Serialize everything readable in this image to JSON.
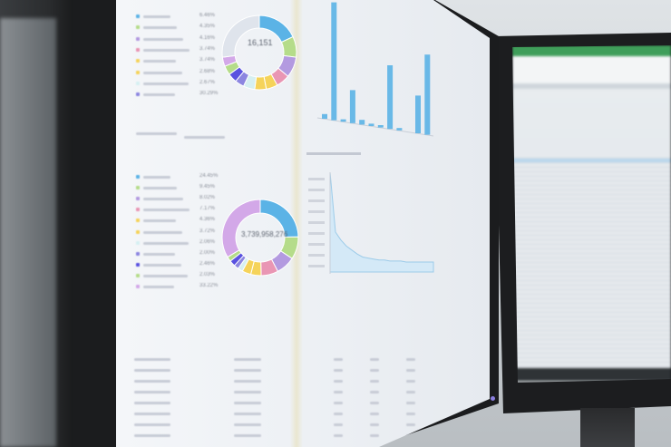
{
  "scene": "dashboard monitors",
  "colors": {
    "accent_blue": "#5bb3e6",
    "green": "#b5dc8a",
    "purple": "#b39ae0",
    "pink": "#e996b4",
    "yellow": "#f5d35a",
    "cyan": "#d6f0f2",
    "indigo": "#5a52e0",
    "violet": "#8c86e0",
    "lavender": "#d3a8e8",
    "grey": "#dfe4ec",
    "sheet_header": "#3f9e5a"
  },
  "top_donut": {
    "center_value": "16,151",
    "percentages": [
      "6.46%",
      "4.35%",
      "4.16%",
      "3.74%",
      "3.74%",
      "2.68%",
      "2.67%",
      "30.29%"
    ],
    "segments": [
      18,
      9,
      9,
      6,
      5,
      5,
      5,
      4,
      4,
      4,
      4,
      27
    ]
  },
  "bottom_donut": {
    "center_value": "3,739,958,276",
    "percentages": [
      "24.45%",
      "9.45%",
      "8.02%",
      "7.17%",
      "4.36%",
      "3.72%",
      "2.06%",
      "2.00%",
      "2.46%",
      "2.03%",
      "33.22%"
    ],
    "segments": [
      24.45,
      9.45,
      8.02,
      7.17,
      4.36,
      3.72,
      2.06,
      2.0,
      2.46,
      2.03,
      33.22
    ]
  },
  "bar_chart": {
    "values": [
      2,
      50,
      1,
      14,
      2,
      1,
      1,
      27,
      1,
      0,
      16,
      34
    ]
  },
  "area_chart": {
    "values": [
      100,
      40,
      32,
      26,
      22,
      18,
      15,
      14,
      13,
      12,
      12,
      11,
      11,
      11,
      10,
      10,
      10,
      10,
      10,
      10
    ]
  }
}
